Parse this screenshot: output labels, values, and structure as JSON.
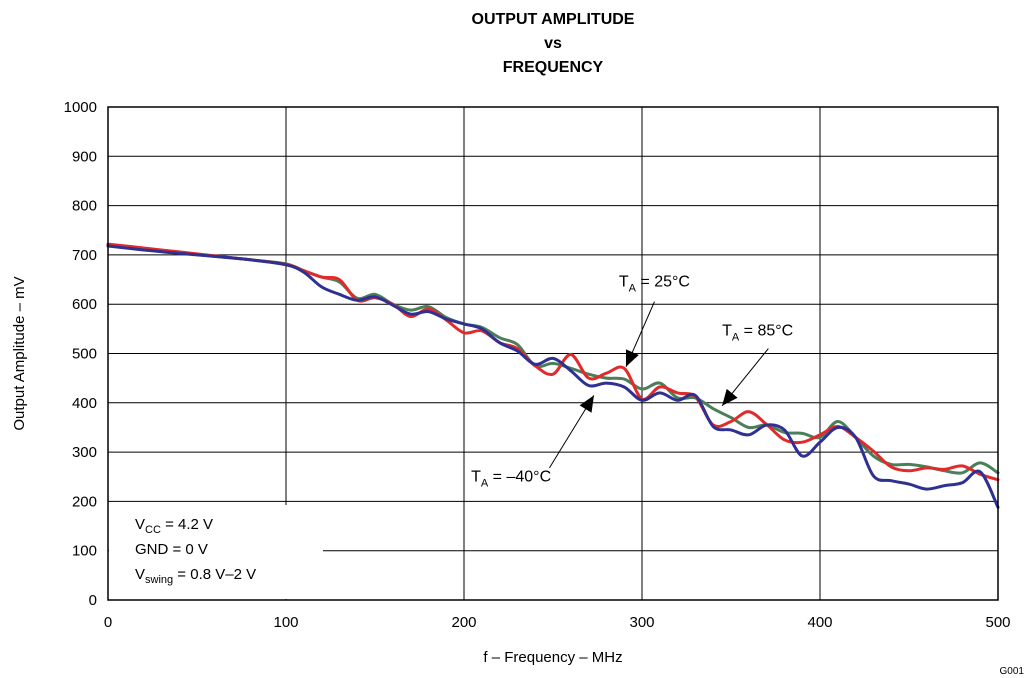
{
  "chart_data": {
    "type": "line",
    "title_lines": [
      "OUTPUT AMPLITUDE",
      "vs",
      "FREQUENCY"
    ],
    "xlabel": "f – Frequency – MHz",
    "ylabel": "Output Amplitude – mV",
    "xlim": [
      0,
      500
    ],
    "ylim": [
      0,
      1000
    ],
    "xticks": [
      0,
      100,
      200,
      300,
      400,
      500
    ],
    "yticks": [
      0,
      100,
      200,
      300,
      400,
      500,
      600,
      700,
      800,
      900,
      1000
    ],
    "grid": true,
    "figure_id": "G001",
    "series": [
      {
        "color": "#4a7f5a",
        "x": [
          0,
          20,
          40,
          60,
          80,
          100,
          110,
          120,
          130,
          140,
          150,
          160,
          170,
          180,
          190,
          200,
          210,
          220,
          230,
          240,
          250,
          260,
          270,
          280,
          290,
          300,
          310,
          320,
          330,
          340,
          350,
          360,
          370,
          380,
          390,
          400,
          410,
          420,
          430,
          440,
          450,
          460,
          470,
          480,
          490,
          500
        ],
        "y": [
          720,
          712,
          704,
          697,
          690,
          682,
          668,
          655,
          645,
          612,
          620,
          600,
          588,
          595,
          573,
          560,
          553,
          532,
          518,
          475,
          480,
          470,
          458,
          450,
          448,
          428,
          440,
          410,
          410,
          388,
          370,
          350,
          355,
          340,
          338,
          330,
          362,
          330,
          292,
          275,
          275,
          270,
          262,
          258,
          278,
          258
        ]
      },
      {
        "color": "#e32a2a",
        "x": [
          0,
          20,
          40,
          60,
          80,
          100,
          110,
          120,
          130,
          140,
          150,
          160,
          170,
          180,
          190,
          200,
          210,
          220,
          230,
          240,
          250,
          260,
          270,
          280,
          290,
          300,
          310,
          320,
          330,
          340,
          350,
          360,
          370,
          380,
          390,
          400,
          410,
          420,
          430,
          440,
          450,
          460,
          470,
          480,
          490,
          500
        ],
        "y": [
          722,
          714,
          706,
          698,
          690,
          681,
          668,
          655,
          650,
          608,
          613,
          600,
          575,
          590,
          568,
          542,
          546,
          522,
          510,
          475,
          458,
          498,
          450,
          460,
          470,
          408,
          432,
          420,
          412,
          355,
          362,
          382,
          356,
          325,
          320,
          335,
          352,
          330,
          302,
          270,
          262,
          268,
          265,
          272,
          255,
          244
        ]
      },
      {
        "color": "#2e3192",
        "x": [
          0,
          20,
          40,
          60,
          80,
          100,
          110,
          120,
          130,
          140,
          150,
          160,
          170,
          180,
          190,
          200,
          210,
          220,
          230,
          240,
          250,
          260,
          270,
          280,
          290,
          300,
          310,
          320,
          330,
          340,
          350,
          360,
          370,
          380,
          390,
          400,
          410,
          420,
          430,
          440,
          450,
          460,
          470,
          480,
          490,
          500
        ],
        "y": [
          718,
          710,
          703,
          697,
          690,
          680,
          665,
          635,
          620,
          608,
          615,
          598,
          580,
          585,
          570,
          560,
          550,
          522,
          505,
          478,
          490,
          465,
          435,
          440,
          432,
          405,
          420,
          405,
          415,
          352,
          345,
          335,
          355,
          345,
          292,
          320,
          350,
          330,
          252,
          242,
          235,
          225,
          232,
          238,
          260,
          188
        ]
      }
    ],
    "annotations": [
      {
        "label": "T",
        "sub": "A",
        "rest": " = 25°C",
        "label_x": 287,
        "label_y": 636,
        "arrow_from": [
          307,
          605
        ],
        "arrow_to": [
          291,
          473
        ]
      },
      {
        "label": "T",
        "sub": "A",
        "rest": " = 85°C",
        "label_x": 345,
        "label_y": 537,
        "arrow_from": [
          371,
          510
        ],
        "arrow_to": [
          345,
          394
        ]
      },
      {
        "label": "T",
        "sub": "A",
        "rest": " = –40°C",
        "label_x": 204,
        "label_y": 240,
        "arrow_from": [
          248,
          268
        ],
        "arrow_to": [
          273,
          415
        ]
      }
    ],
    "notes": [
      {
        "main": "V",
        "sub": "CC",
        "rest": " = 4.2 V"
      },
      {
        "main": "GND = 0 V",
        "sub": "",
        "rest": ""
      },
      {
        "main": "V",
        "sub": "swing",
        "rest": " = 0.8 V–2 V"
      }
    ]
  }
}
